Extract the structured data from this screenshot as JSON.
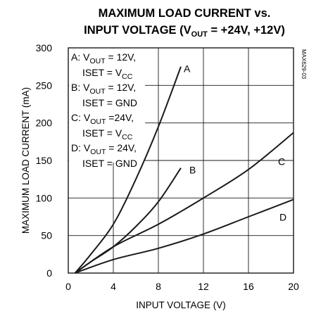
{
  "chart_data": {
    "type": "line",
    "title_line1": "MAXIMUM LOAD CURRENT vs.",
    "title_line2_pre": "INPUT VOLTAGE (V",
    "title_line2_sub": "OUT",
    "title_line2_post": " = +24V, +12V)",
    "xlabel": "INPUT VOLTAGE (V)",
    "ylabel": "MAXIMUM LOAD CURRENT (mA)",
    "side_label": "MAX629-03",
    "xlim": [
      0,
      20
    ],
    "ylim": [
      0,
      300
    ],
    "xticks": [
      0,
      4,
      8,
      12,
      16,
      20
    ],
    "yticks": [
      0,
      50,
      100,
      150,
      200,
      250,
      300
    ],
    "grid": true,
    "legend": [
      {
        "letter": "A:",
        "pre": "V",
        "sub": "OUT",
        "post": " = 12V,",
        "line2_pre": "ISET = V",
        "line2_sub": "CC"
      },
      {
        "letter": "B:",
        "pre": "V",
        "sub": "OUT",
        "post": " = 12V,",
        "line2_pre": "ISET = GND",
        "line2_sub": ""
      },
      {
        "letter": "C:",
        "pre": "V",
        "sub": "OUT",
        "post": " =24V,",
        "line2_pre": "ISET = V",
        "line2_sub": "CC"
      },
      {
        "letter": "D:",
        "pre": "V",
        "sub": "OUT",
        "post": " = 24V,",
        "line2_pre": "ISET = GND",
        "line2_sub": ""
      }
    ],
    "series": [
      {
        "name": "A",
        "x": [
          0.6,
          2,
          4,
          6,
          8,
          10
        ],
        "y": [
          0,
          25,
          65,
          125,
          195,
          275
        ]
      },
      {
        "name": "B",
        "x": [
          0.6,
          2,
          4,
          6,
          8,
          10
        ],
        "y": [
          0,
          15,
          35,
          62,
          95,
          140
        ]
      },
      {
        "name": "C",
        "x": [
          0.6,
          4,
          8,
          12,
          16,
          20
        ],
        "y": [
          0,
          35,
          65,
          100,
          138,
          187
        ]
      },
      {
        "name": "D",
        "x": [
          0.6,
          4,
          8,
          12,
          16,
          20
        ],
        "y": [
          0,
          18,
          33,
          52,
          75,
          98
        ]
      }
    ]
  }
}
